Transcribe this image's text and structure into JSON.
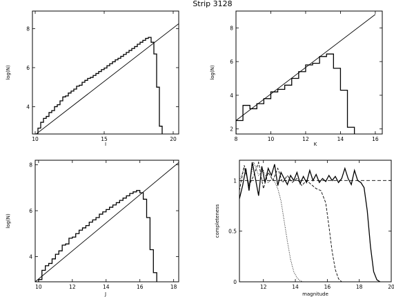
{
  "figure": {
    "title": "Strip 3128"
  },
  "chart_data": [
    {
      "type": "line",
      "xlabel": "I",
      "ylabel": "log(N)",
      "xlim": [
        9.8,
        20.4
      ],
      "ylim": [
        2.6,
        8.9
      ],
      "xticks": [
        10,
        15,
        20
      ],
      "yticks": [
        4,
        6,
        8
      ],
      "grid": false,
      "fit_line": {
        "x": [
          9.8,
          20.4
        ],
        "y": [
          2.45,
          8.25
        ]
      },
      "histogram": {
        "edges": [
          10.0,
          10.2,
          10.4,
          10.6,
          10.8,
          11.0,
          11.2,
          11.4,
          11.6,
          11.8,
          12.0,
          12.2,
          12.4,
          12.6,
          12.8,
          13.0,
          13.2,
          13.4,
          13.6,
          13.8,
          14.0,
          14.2,
          14.4,
          14.6,
          14.8,
          15.0,
          15.2,
          15.4,
          15.6,
          15.8,
          16.0,
          16.2,
          16.4,
          16.6,
          16.8,
          17.0,
          17.2,
          17.4,
          17.6,
          17.8,
          18.0,
          18.2,
          18.4,
          18.6,
          18.8,
          19.0,
          19.2
        ],
        "counts": [
          2.6,
          2.9,
          3.2,
          3.4,
          3.5,
          3.7,
          3.8,
          4.0,
          4.1,
          4.3,
          4.5,
          4.55,
          4.7,
          4.8,
          4.9,
          5.05,
          5.1,
          5.25,
          5.35,
          5.45,
          5.5,
          5.6,
          5.7,
          5.8,
          5.9,
          5.98,
          6.1,
          6.2,
          6.3,
          6.4,
          6.48,
          6.58,
          6.68,
          6.78,
          6.88,
          6.98,
          7.08,
          7.2,
          7.3,
          7.4,
          7.5,
          7.55,
          7.3,
          6.7,
          5.0,
          3.0
        ]
      }
    },
    {
      "type": "line",
      "xlabel": "K",
      "ylabel": "log(N)",
      "xlim": [
        8,
        16.4
      ],
      "ylim": [
        1.7,
        9.0
      ],
      "xticks": [
        8,
        10,
        12,
        14,
        16
      ],
      "yticks": [
        2,
        4,
        6,
        8
      ],
      "grid": false,
      "fit_line": {
        "x": [
          8,
          16
        ],
        "y": [
          2.5,
          8.8
        ]
      },
      "histogram": {
        "edges": [
          8.0,
          8.4,
          8.8,
          9.2,
          9.6,
          10.0,
          10.4,
          10.8,
          11.2,
          11.6,
          12.0,
          12.4,
          12.8,
          13.2,
          13.6,
          14.0,
          14.4,
          14.8
        ],
        "counts": [
          2.5,
          3.4,
          3.2,
          3.5,
          3.8,
          4.2,
          4.35,
          4.6,
          5.0,
          5.4,
          5.8,
          5.9,
          6.3,
          6.45,
          5.6,
          4.3,
          2.1
        ]
      }
    },
    {
      "type": "line",
      "xlabel": "J",
      "ylabel": "log(N)",
      "xlim": [
        9.8,
        18.3
      ],
      "ylim": [
        2.9,
        8.2
      ],
      "xticks": [
        10,
        12,
        14,
        16,
        18
      ],
      "yticks": [
        4,
        6,
        8
      ],
      "grid": false,
      "fit_line": {
        "x": [
          9.8,
          18.3
        ],
        "y": [
          2.9,
          8.1
        ]
      },
      "histogram": {
        "edges": [
          10.0,
          10.2,
          10.4,
          10.6,
          10.8,
          11.0,
          11.2,
          11.4,
          11.6,
          11.8,
          12.0,
          12.2,
          12.4,
          12.6,
          12.8,
          13.0,
          13.2,
          13.4,
          13.6,
          13.8,
          14.0,
          14.2,
          14.4,
          14.6,
          14.8,
          15.0,
          15.2,
          15.4,
          15.6,
          15.8,
          16.0,
          16.2,
          16.4,
          16.6,
          16.8,
          17.0
        ],
        "counts": [
          3.0,
          3.4,
          3.6,
          3.7,
          3.9,
          4.1,
          4.25,
          4.5,
          4.55,
          4.8,
          4.85,
          5.0,
          5.15,
          5.25,
          5.35,
          5.5,
          5.6,
          5.7,
          5.85,
          5.95,
          6.05,
          6.15,
          6.25,
          6.35,
          6.45,
          6.55,
          6.65,
          6.75,
          6.82,
          6.88,
          6.78,
          6.5,
          5.7,
          4.3,
          3.3
        ]
      }
    },
    {
      "type": "line",
      "xlabel": "magnitude",
      "ylabel": "completeness",
      "xlim": [
        10.5,
        20
      ],
      "ylim": [
        0,
        1.2
      ],
      "xticks": [
        12,
        14,
        16,
        18,
        20
      ],
      "yticks": [
        0,
        0.5,
        1
      ],
      "ytick_labels": [
        "0",
        "0.5",
        "1"
      ],
      "grid": false,
      "reference_line": {
        "y": 1,
        "style": "dashed"
      },
      "series": [
        {
          "style": "solid",
          "x": [
            10.5,
            10.7,
            10.9,
            11.1,
            11.3,
            11.5,
            11.7,
            11.9,
            12.1,
            12.3,
            12.5,
            12.7,
            12.9,
            13.1,
            13.3,
            13.5,
            13.7,
            13.9,
            14.1,
            14.3,
            14.5,
            14.7,
            14.9,
            15.1,
            15.3,
            15.5,
            15.7,
            15.9,
            16.1,
            16.3,
            16.5,
            16.7,
            16.9,
            17.1,
            17.3,
            17.5,
            17.7,
            17.9,
            18.1,
            18.3,
            18.5,
            18.7,
            18.9,
            19.1,
            19.3
          ],
          "y": [
            0.82,
            0.95,
            1.12,
            0.9,
            1.18,
            1.02,
            0.85,
            1.14,
            0.98,
            1.12,
            1.05,
            1.16,
            0.95,
            1.08,
            1.02,
            0.96,
            1.05,
            1.0,
            1.08,
            0.97,
            1.04,
            0.98,
            1.1,
            1.0,
            1.06,
            0.98,
            1.02,
            0.99,
            1.05,
            1.0,
            1.04,
            0.98,
            1.02,
            1.12,
            1.02,
            0.96,
            1.1,
            1.0,
            0.98,
            0.93,
            0.7,
            0.35,
            0.1,
            0.02,
            0.0
          ]
        },
        {
          "style": "dashed",
          "x": [
            10.5,
            10.8,
            11.1,
            11.4,
            11.7,
            12.0,
            12.3,
            12.6,
            12.9,
            13.2,
            13.5,
            13.8,
            14.1,
            14.4,
            14.7,
            15.0,
            15.3,
            15.6,
            15.9,
            16.1,
            16.3,
            16.5,
            16.7,
            16.9
          ],
          "y": [
            0.9,
            1.15,
            0.95,
            1.05,
            1.18,
            0.92,
            1.08,
            1.0,
            1.12,
            0.98,
            1.05,
            0.98,
            1.02,
            0.95,
            1.0,
            0.96,
            0.92,
            0.9,
            0.78,
            0.55,
            0.3,
            0.12,
            0.03,
            0.0
          ]
        },
        {
          "style": "dotted",
          "x": [
            10.5,
            10.8,
            11.1,
            11.4,
            11.7,
            12.0,
            12.3,
            12.6,
            12.9,
            13.1,
            13.3,
            13.5,
            13.7,
            13.9,
            14.1,
            14.3,
            14.5
          ],
          "y": [
            1.0,
            1.12,
            0.96,
            1.18,
            1.05,
            1.1,
            0.98,
            1.02,
            0.92,
            0.8,
            0.6,
            0.4,
            0.22,
            0.1,
            0.04,
            0.01,
            0.0
          ]
        }
      ]
    }
  ]
}
